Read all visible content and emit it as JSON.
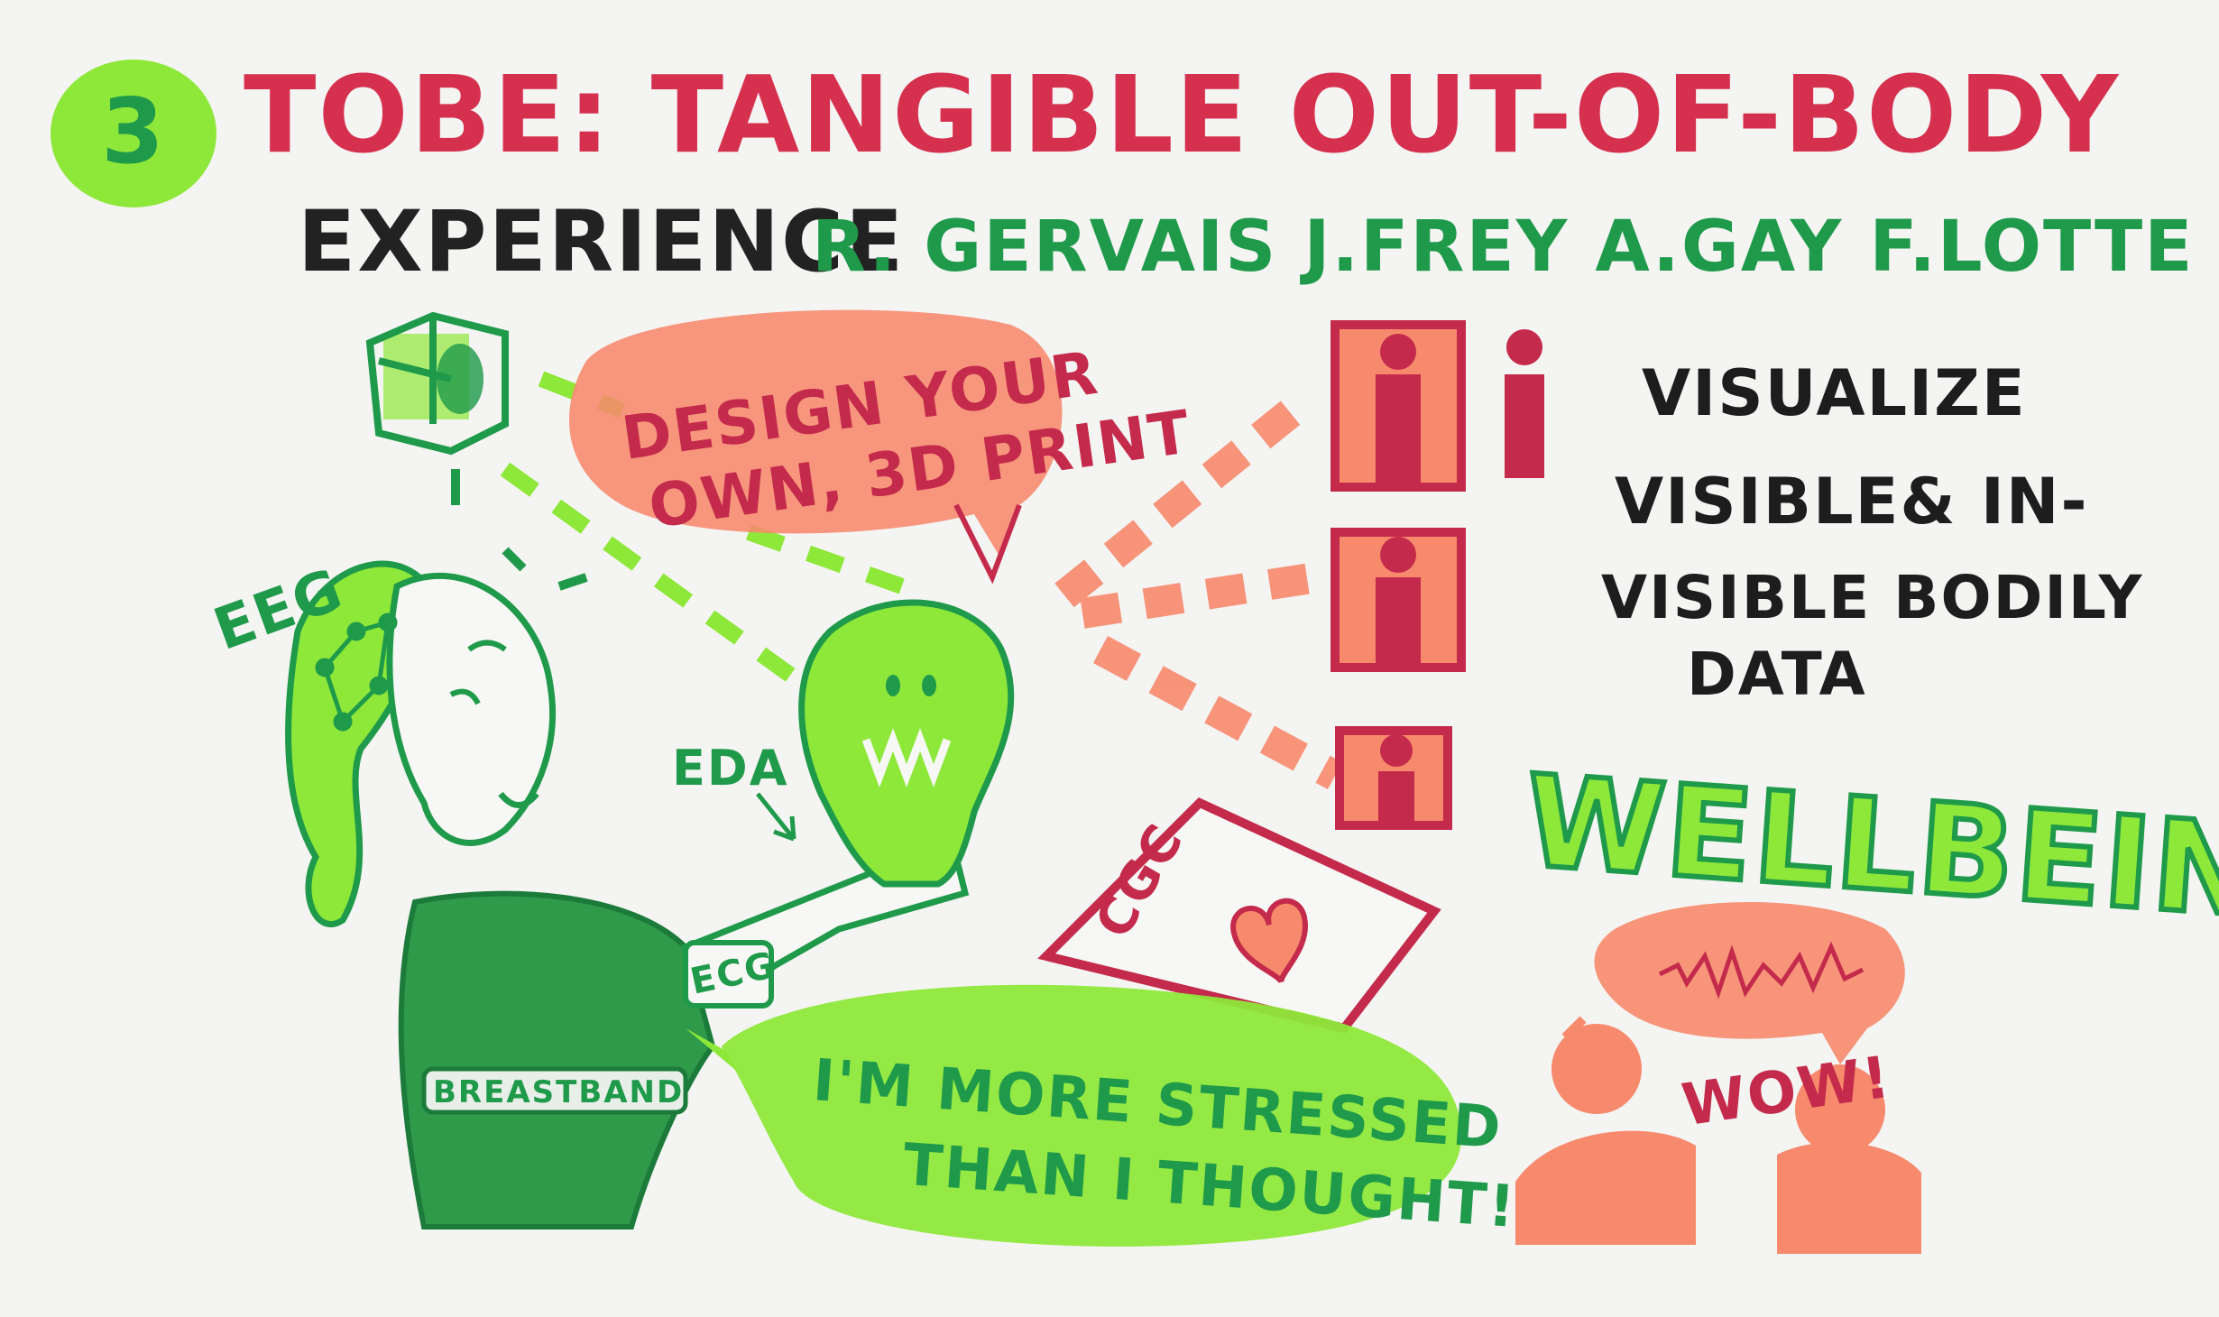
{
  "header": {
    "number": "3",
    "title_line1": "TOBE: TANGIBLE OUT-OF-BODY",
    "title_line2": "EXPERIENCE",
    "authors": "R. GERVAIS  J.FREY  A.GAY  F.LOTTE  M.HACHET"
  },
  "labels": {
    "eeg": "EEG",
    "eda": "EDA",
    "ecg": "ECG",
    "breastband": "BREASTBAND",
    "cgc": "CGC"
  },
  "bubbles": {
    "design_line1": "DESIGN YOUR",
    "design_line2": "OWN, 3D PRINT",
    "stressed_line1": "I'M MORE STRESSED",
    "stressed_line2": "THAN I THOUGHT!",
    "wow": "WOW!"
  },
  "notes": {
    "visualize_line1": "VISUALIZE",
    "visualize_line2": "VISIBLE& IN-",
    "visualize_line3": "VISIBLE BODILY",
    "visualize_line4": "DATA",
    "wellbeing": "WELLBEING"
  },
  "colors": {
    "red": "#d6304f",
    "green": "#1f9a4a",
    "lime": "#8ee83a",
    "salmon": "#f7896c",
    "dark": "#222222",
    "board": "#f4f4f2"
  }
}
